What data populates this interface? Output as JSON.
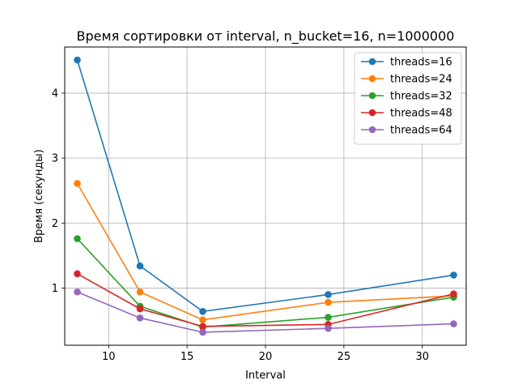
{
  "chart_data": {
    "type": "line",
    "title": "Время сортировки от interval, n_bucket=16, n=1000000",
    "xlabel": "Interval",
    "ylabel": "Время (секунды)",
    "x": [
      8,
      12,
      16,
      24,
      32
    ],
    "xlim": [
      7.2,
      32.8
    ],
    "ylim": [
      0.12,
      4.71
    ],
    "xticks": [
      10,
      15,
      20,
      25,
      30
    ],
    "yticks": [
      1,
      2,
      3,
      4
    ],
    "grid": true,
    "legend_position": "top-right",
    "series": [
      {
        "name": "threads=16",
        "color": "#1f77b4",
        "values": [
          4.51,
          1.34,
          0.64,
          0.9,
          1.2
        ]
      },
      {
        "name": "threads=24",
        "color": "#ff7f0e",
        "values": [
          2.61,
          0.94,
          0.51,
          0.78,
          0.88
        ]
      },
      {
        "name": "threads=32",
        "color": "#2ca02c",
        "values": [
          1.76,
          0.72,
          0.4,
          0.55,
          0.86
        ]
      },
      {
        "name": "threads=48",
        "color": "#d62728",
        "values": [
          1.22,
          0.68,
          0.41,
          0.44,
          0.91
        ]
      },
      {
        "name": "threads=64",
        "color": "#9467bd",
        "values": [
          0.94,
          0.54,
          0.32,
          0.38,
          0.45
        ]
      }
    ]
  }
}
